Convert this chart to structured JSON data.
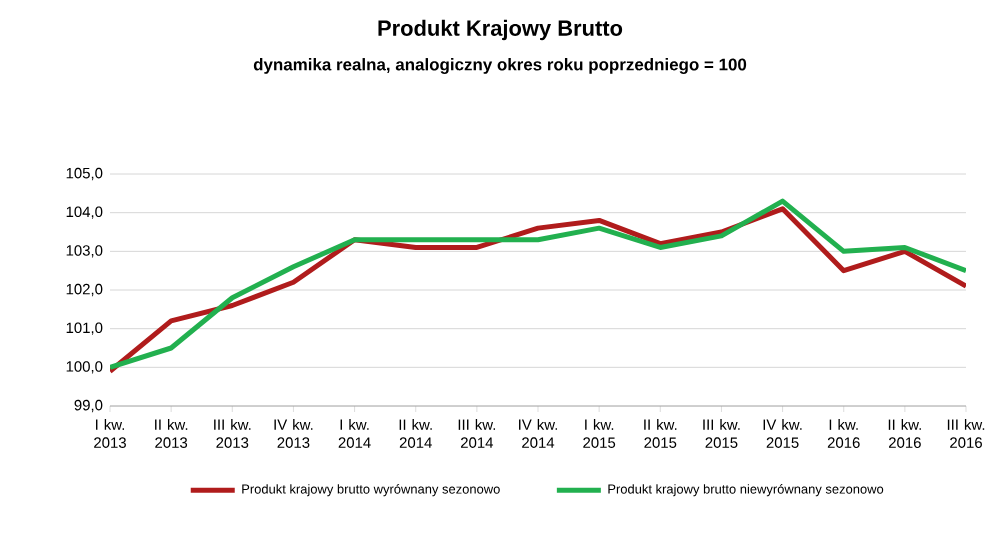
{
  "chart_data": {
    "type": "line",
    "title": "Produkt Krajowy Brutto",
    "subtitle": "dynamika realna, analogiczny okres roku poprzedniego = 100",
    "categories": [
      "I kw. 2013",
      "II kw. 2013",
      "III kw. 2013",
      "IV kw. 2013",
      "I kw. 2014",
      "II kw. 2014",
      "III kw. 2014",
      "IV kw. 2014",
      "I kw. 2015",
      "II kw. 2015",
      "III kw. 2015",
      "IV kw. 2015",
      "I kw. 2016",
      "II kw. 2016",
      "III kw. 2016"
    ],
    "series": [
      {
        "name": "Produkt krajowy brutto wyrównany sezonowo",
        "color": "#b01c1c",
        "values": [
          99.9,
          101.2,
          101.6,
          102.2,
          103.3,
          103.1,
          103.1,
          103.6,
          103.8,
          103.2,
          103.5,
          104.1,
          102.5,
          103.0,
          102.1
        ]
      },
      {
        "name": "Produkt krajowy brutto niewyrównany sezonowo",
        "color": "#22b04f",
        "values": [
          100.0,
          100.5,
          101.8,
          102.6,
          103.3,
          103.3,
          103.3,
          103.3,
          103.6,
          103.1,
          103.4,
          104.3,
          103.0,
          103.1,
          102.5
        ]
      }
    ],
    "ylim": [
      99,
      105
    ],
    "yticks": [
      {
        "value": 99,
        "label": "99,0"
      },
      {
        "value": 100,
        "label": "100,0"
      },
      {
        "value": 101,
        "label": "101,0"
      },
      {
        "value": 102,
        "label": "102,0"
      },
      {
        "value": 103,
        "label": "103,0"
      },
      {
        "value": 104,
        "label": "104,0"
      },
      {
        "value": 105,
        "label": "105,0"
      }
    ],
    "grid": "y",
    "legend": "bottom",
    "marker": "none",
    "line_style": "solid"
  }
}
